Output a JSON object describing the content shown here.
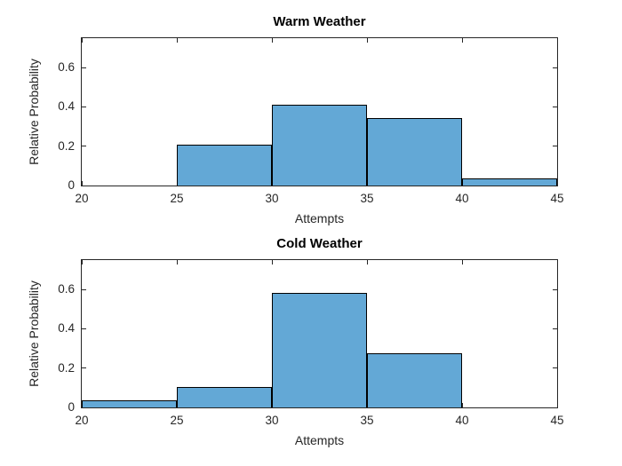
{
  "figure": {
    "background": "#FFFFFF"
  },
  "chart_data": [
    {
      "type": "bar",
      "subtype": "histogram",
      "title": "Warm Weather",
      "xlabel": "Attempts",
      "ylabel": "Relative Probability",
      "bin_edges": [
        20,
        25,
        30,
        35,
        40,
        45
      ],
      "values": [
        0,
        0.21,
        0.41,
        0.345,
        0.035
      ],
      "xlim": [
        20,
        45
      ],
      "ylim": [
        0,
        0.75
      ],
      "xticks": [
        20,
        25,
        30,
        35,
        40,
        45
      ],
      "xtick_labels": [
        "20",
        "25",
        "30",
        "35",
        "40",
        "45"
      ],
      "yticks": [
        0,
        0.2,
        0.4,
        0.6
      ],
      "ytick_labels": [
        "0",
        "0.2",
        "0.4",
        "0.6"
      ],
      "grid": false,
      "bar_face_color": "#63A8D6",
      "bar_edge_color": "#000000",
      "axis_color": "#262626"
    },
    {
      "type": "bar",
      "subtype": "histogram",
      "title": "Cold Weather",
      "xlabel": "Attempts",
      "ylabel": "Relative Probability",
      "bin_edges": [
        20,
        25,
        30,
        35,
        40,
        45
      ],
      "values": [
        0.035,
        0.105,
        0.585,
        0.275,
        0
      ],
      "xlim": [
        20,
        45
      ],
      "ylim": [
        0,
        0.75
      ],
      "xticks": [
        20,
        25,
        30,
        35,
        40,
        45
      ],
      "xtick_labels": [
        "20",
        "25",
        "30",
        "35",
        "40",
        "45"
      ],
      "yticks": [
        0,
        0.2,
        0.4,
        0.6
      ],
      "ytick_labels": [
        "0",
        "0.2",
        "0.4",
        "0.6"
      ],
      "grid": false,
      "bar_face_color": "#63A8D6",
      "bar_edge_color": "#000000",
      "axis_color": "#262626"
    }
  ]
}
